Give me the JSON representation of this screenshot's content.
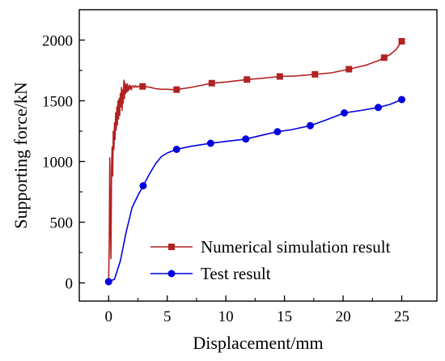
{
  "chart_data": {
    "type": "line",
    "xlabel": "Displacement/mm",
    "ylabel": "Supporting force/kN",
    "xlim": [
      -2.5,
      28
    ],
    "ylim": [
      -150,
      2250
    ],
    "x_ticks": [
      "0",
      "5",
      "10",
      "15",
      "20",
      "25"
    ],
    "y_ticks": [
      "0",
      "500",
      "1000",
      "1500",
      "2000"
    ],
    "legend_position": "bottom-right",
    "grid": false,
    "series": [
      {
        "name": "Numerical simulation result",
        "color": "#b22222",
        "marker": "square",
        "curve_x": [
          0,
          0.05,
          0.1,
          0.15,
          0.2,
          0.25,
          0.3,
          0.35,
          0.4,
          0.45,
          0.5,
          0.55,
          0.6,
          0.65,
          0.7,
          0.75,
          0.8,
          0.85,
          0.9,
          0.95,
          1.0,
          1.05,
          1.1,
          1.15,
          1.2,
          1.25,
          1.3,
          1.35,
          1.4,
          1.45,
          1.5,
          1.55,
          1.6,
          1.65,
          1.7,
          1.75,
          1.8,
          1.85,
          1.9,
          1.95,
          2.0,
          2.1,
          2.2,
          2.3,
          2.4,
          2.5,
          2.6,
          2.7,
          2.8,
          2.9,
          3.0,
          3.5,
          4.0,
          4.5,
          5.0,
          5.5,
          5.8,
          7.0,
          8.8,
          10.0,
          11.8,
          13.0,
          14.6,
          16.0,
          17.6,
          19.0,
          20.5,
          22.0,
          23.0,
          23.5,
          24.0,
          24.5,
          25.0
        ],
        "curve_y": [
          0,
          300,
          1030,
          550,
          200,
          950,
          1120,
          880,
          1250,
          1100,
          1320,
          1180,
          1400,
          1260,
          1450,
          1300,
          1500,
          1350,
          1520,
          1380,
          1560,
          1450,
          1610,
          1420,
          1590,
          1480,
          1670,
          1520,
          1650,
          1560,
          1630,
          1570,
          1640,
          1580,
          1620,
          1590,
          1630,
          1600,
          1620,
          1590,
          1615,
          1625,
          1610,
          1625,
          1612,
          1620,
          1615,
          1622,
          1614,
          1620,
          1618,
          1612,
          1600,
          1595,
          1595,
          1592,
          1592,
          1610,
          1645,
          1655,
          1675,
          1685,
          1700,
          1705,
          1718,
          1730,
          1760,
          1795,
          1830,
          1855,
          1880,
          1920,
          1990
        ],
        "marker_x": [
          2.9,
          5.8,
          8.8,
          11.8,
          14.6,
          17.6,
          20.5,
          23.5,
          25.0
        ],
        "marker_y": [
          1618,
          1592,
          1645,
          1675,
          1700,
          1718,
          1760,
          1855,
          1990
        ]
      },
      {
        "name": "Test result",
        "color": "#0000e0",
        "marker": "circle",
        "curve_x": [
          0,
          0.5,
          1.0,
          1.5,
          2.0,
          2.5,
          2.95,
          3.5,
          4.0,
          4.5,
          5.0,
          5.8,
          7.0,
          8.7,
          10.0,
          11.7,
          13.0,
          14.4,
          15.5,
          17.2,
          18.5,
          20.1,
          21.5,
          23.0,
          24.0,
          25.0
        ],
        "curve_y": [
          10,
          30,
          180,
          420,
          620,
          720,
          800,
          900,
          980,
          1040,
          1070,
          1100,
          1125,
          1150,
          1165,
          1185,
          1215,
          1245,
          1260,
          1295,
          1340,
          1400,
          1420,
          1445,
          1470,
          1510
        ],
        "marker_x": [
          0,
          2.95,
          5.8,
          8.7,
          11.7,
          14.4,
          17.2,
          20.1,
          23.0,
          25.0
        ],
        "marker_y": [
          10,
          800,
          1100,
          1150,
          1185,
          1245,
          1295,
          1400,
          1445,
          1510
        ]
      }
    ]
  }
}
